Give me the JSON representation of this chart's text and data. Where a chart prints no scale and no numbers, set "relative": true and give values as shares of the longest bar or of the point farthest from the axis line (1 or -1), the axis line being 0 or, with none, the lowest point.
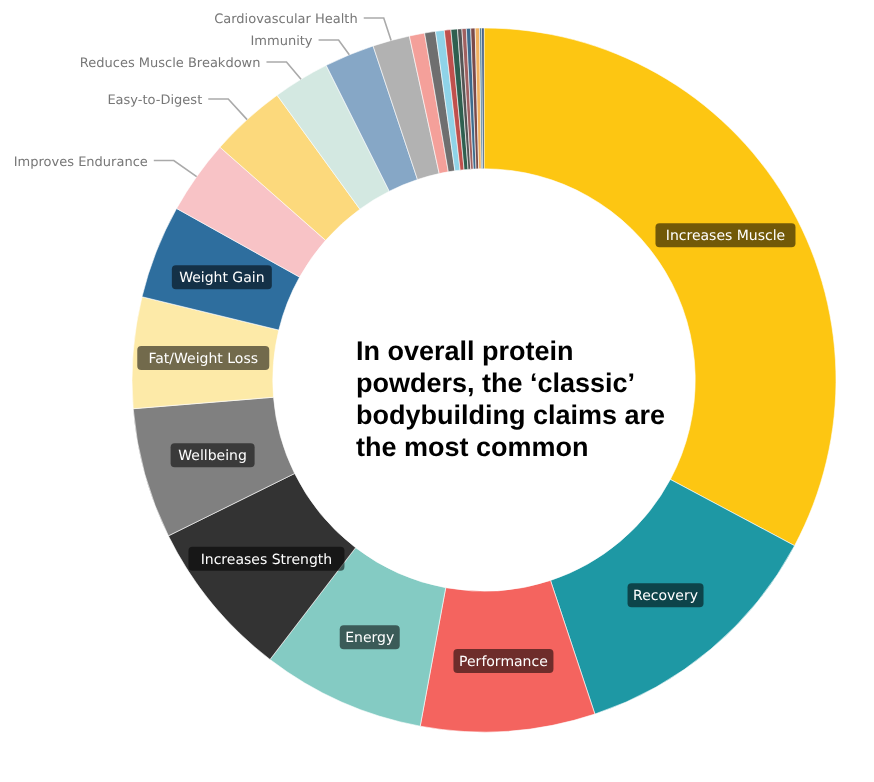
{
  "chart_data": {
    "type": "donut",
    "relative": true,
    "legend": false,
    "categories": [
      "Increases Muscle",
      "Recovery",
      "Performance",
      "Energy",
      "Increases Strength",
      "Wellbeing",
      "Fat/Weight Loss",
      "Weight Gain",
      "Improves Endurance",
      "Easy-to-Digest",
      "Reduces Muscle Breakdown",
      "Immunity",
      "Cardiovascular Health",
      null,
      null,
      null,
      null,
      null,
      null,
      null,
      null,
      null,
      null,
      null,
      null
    ],
    "values": [
      32.8,
      12.1,
      8,
      7.5,
      7.3,
      6,
      5.1,
      4.3,
      3.4,
      3.5,
      2.6,
      2.3,
      1.7,
      0.7,
      0.5,
      0.4,
      0.3,
      0.3,
      0.2,
      0.2,
      0.2,
      0.2,
      0.2,
      0.1,
      0.1
    ],
    "colors": [
      "#fdc612",
      "#1e98a4",
      "#f4645f",
      "#84cbc3",
      "#333333",
      "#808080",
      "#fdeaa8",
      "#2e6e9e",
      "#f8c3c6",
      "#fcd97c",
      "#d3e8e1",
      "#86a7c6",
      "#b2b2b2",
      "#f4a09a",
      "#6f6f6f",
      "#8fd3e8",
      "#c0504d",
      "#2f5f4f",
      "#555555",
      "#a06060",
      "#3d6b8c",
      "#7a4a4a",
      "#f0b060",
      "#4a7a8c",
      "#1f3f6f"
    ],
    "annotations": [
      "In overall protein powders, the ‘classic’ bodybuilding claims are the most common"
    ]
  }
}
